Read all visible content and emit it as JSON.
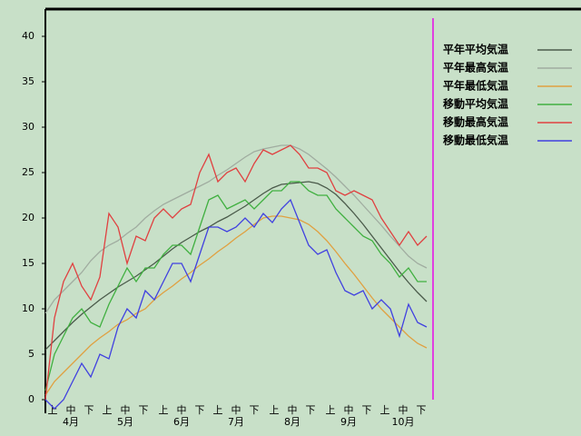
{
  "chart_data": {
    "type": "line",
    "x": [
      0,
      5,
      10,
      15,
      20,
      25,
      30,
      35,
      40,
      45,
      50,
      55,
      60,
      65,
      70,
      75,
      80,
      85,
      90,
      95,
      100,
      105,
      110,
      115,
      120,
      125,
      130,
      135,
      140,
      145,
      150,
      155,
      160,
      165,
      170,
      175,
      180,
      185,
      190,
      195,
      200,
      205,
      210
    ],
    "xlim": [
      0,
      214
    ],
    "ylim": [
      -1.5,
      43
    ],
    "yticks": [
      0,
      5,
      10,
      15,
      20,
      25,
      30,
      35,
      40
    ],
    "xticks": [
      {
        "value": 4,
        "label": "上"
      },
      {
        "value": 14,
        "label": "中"
      },
      {
        "value": 24,
        "label": "下"
      },
      {
        "value": 34,
        "label": "上"
      },
      {
        "value": 44,
        "label": "中"
      },
      {
        "value": 54,
        "label": "下"
      },
      {
        "value": 65,
        "label": "上"
      },
      {
        "value": 75,
        "label": "中"
      },
      {
        "value": 85,
        "label": "下"
      },
      {
        "value": 95,
        "label": "上"
      },
      {
        "value": 105,
        "label": "中"
      },
      {
        "value": 115,
        "label": "下"
      },
      {
        "value": 126,
        "label": "上"
      },
      {
        "value": 136,
        "label": "中"
      },
      {
        "value": 146,
        "label": "下"
      },
      {
        "value": 157,
        "label": "上"
      },
      {
        "value": 167,
        "label": "中"
      },
      {
        "value": 177,
        "label": "下"
      },
      {
        "value": 187,
        "label": "上"
      },
      {
        "value": 197,
        "label": "中"
      },
      {
        "value": 207,
        "label": "下"
      }
    ],
    "month_labels": [
      {
        "value": 14,
        "label": "4月"
      },
      {
        "value": 44,
        "label": "5月"
      },
      {
        "value": 75,
        "label": "6月"
      },
      {
        "value": 105,
        "label": "7月"
      },
      {
        "value": 136,
        "label": "8月"
      },
      {
        "value": 167,
        "label": "9月"
      },
      {
        "value": 197,
        "label": "10月"
      }
    ],
    "legend": "upper right",
    "series": [
      {
        "name": "平年平均気温",
        "color": "#4a5a4a",
        "values": [
          5.5,
          6.5,
          7.5,
          8.5,
          9.4,
          10.2,
          11,
          11.7,
          12.4,
          13,
          13.6,
          14.3,
          15,
          15.8,
          16.6,
          17.3,
          17.9,
          18.5,
          19,
          19.6,
          20.1,
          20.7,
          21.3,
          22,
          22.7,
          23.3,
          23.7,
          23.8,
          23.9,
          24,
          23.8,
          23.3,
          22.6,
          21.6,
          20.5,
          19.3,
          18,
          16.7,
          15.4,
          14.1,
          12.9,
          11.8,
          10.8
        ]
      },
      {
        "name": "平年最高気温",
        "color": "#a0aca0",
        "values": [
          9.5,
          11,
          12,
          13,
          14,
          15.3,
          16.3,
          17,
          17.5,
          18.3,
          19,
          20,
          20.8,
          21.5,
          22,
          22.5,
          23,
          23.5,
          24,
          24.7,
          25.3,
          26,
          26.7,
          27.3,
          27.6,
          27.8,
          28,
          28,
          27.6,
          27,
          26.2,
          25.4,
          24.5,
          23.5,
          22.5,
          21.4,
          20.3,
          19.2,
          18,
          16.9,
          15.8,
          15,
          14.5
        ]
      },
      {
        "name": "平年最低気温",
        "color": "#e0a040",
        "values": [
          0.5,
          2,
          3,
          4,
          5,
          6,
          6.8,
          7.5,
          8.3,
          8.8,
          9.5,
          10,
          11,
          11.8,
          12.5,
          13.3,
          14,
          14.8,
          15.5,
          16.3,
          17,
          17.8,
          18.5,
          19.3,
          20,
          20.2,
          20.2,
          20,
          19.8,
          19.3,
          18.5,
          17.5,
          16.3,
          15,
          13.8,
          12.5,
          11.2,
          10,
          9,
          8,
          7,
          6.2,
          5.7
        ]
      },
      {
        "name": "移動平均気温",
        "color": "#40b040",
        "values": [
          1,
          5,
          7,
          9,
          10,
          8.5,
          8,
          10.5,
          12.5,
          14.5,
          13,
          14.5,
          14.5,
          16,
          17,
          17,
          16,
          19,
          22,
          22.5,
          21,
          21.5,
          22,
          21,
          22,
          23,
          23,
          24,
          24,
          23,
          22.5,
          22.5,
          21,
          20,
          19,
          18,
          17.5,
          16,
          15,
          13.5,
          14.5,
          13,
          13
        ]
      },
      {
        "name": "移動最高気温",
        "color": "#e04040",
        "values": [
          0,
          9,
          13,
          15,
          12.5,
          11,
          13.5,
          20.5,
          19,
          15,
          18,
          17.5,
          20,
          21,
          20,
          21,
          21.5,
          25,
          27,
          24,
          25,
          25.5,
          24,
          26,
          27.5,
          27,
          27.5,
          28,
          27,
          25.5,
          25.5,
          25,
          23,
          22.5,
          23,
          22.5,
          22,
          20,
          18.5,
          17,
          18.5,
          17,
          18
        ]
      },
      {
        "name": "移動最低気温",
        "color": "#4040e0",
        "values": [
          0,
          -1,
          0,
          2,
          4,
          2.5,
          5,
          4.5,
          8,
          10,
          9,
          12,
          11,
          13,
          15,
          15,
          13,
          16,
          19,
          19,
          18.5,
          19,
          20,
          19,
          20.5,
          19.5,
          21,
          22,
          19.5,
          17,
          16,
          16.5,
          14,
          12,
          11.5,
          12,
          10,
          11,
          10,
          7,
          10.5,
          8.5,
          8
        ]
      }
    ]
  }
}
